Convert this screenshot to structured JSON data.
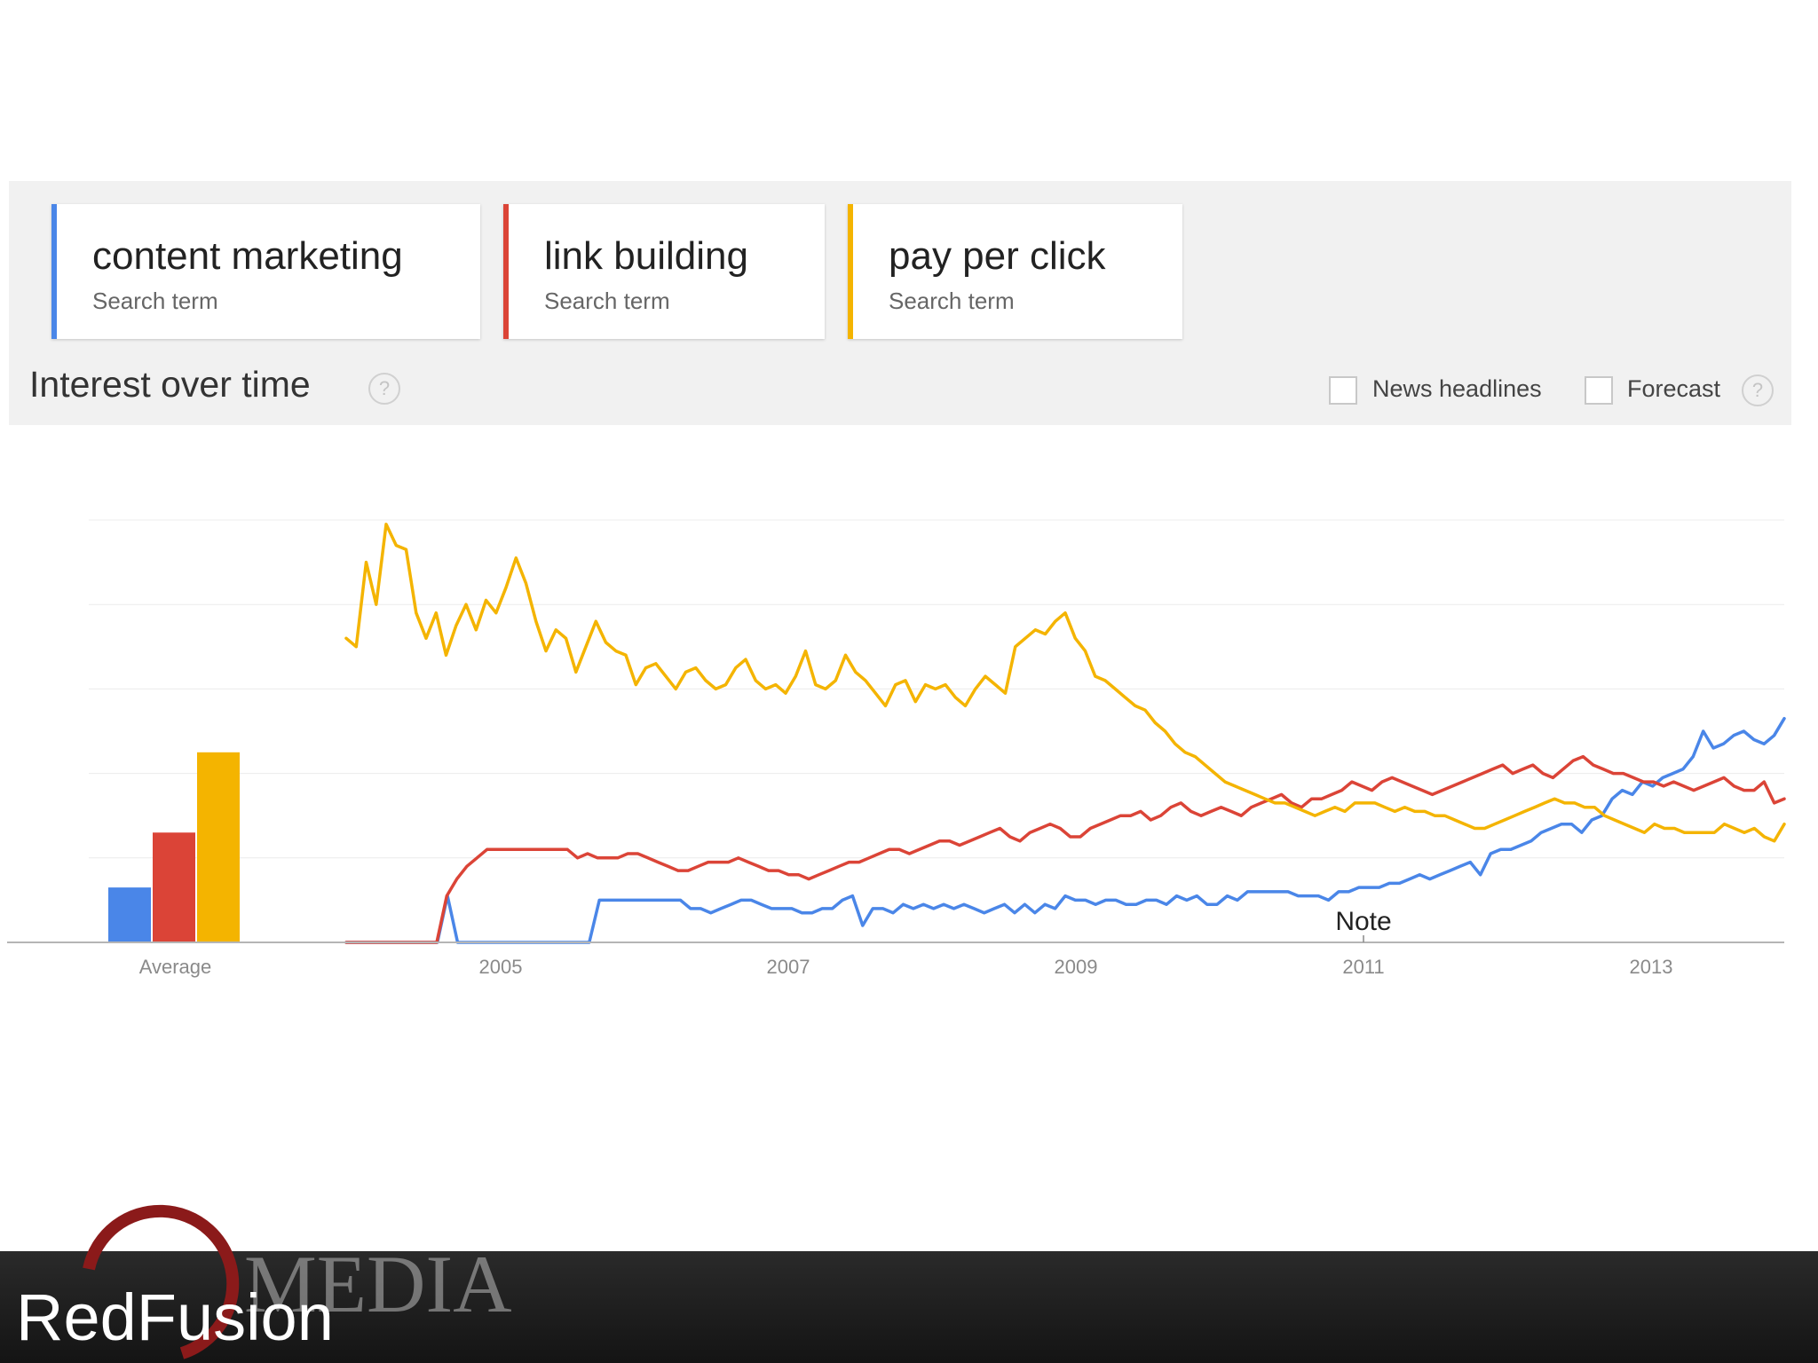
{
  "terms": [
    {
      "name": "content marketing",
      "sub": "Search term",
      "color": "#4A86E8"
    },
    {
      "name": "link building",
      "sub": "Search term",
      "color": "#DB4437"
    },
    {
      "name": "pay per click",
      "sub": "Search term",
      "color": "#F4B400"
    }
  ],
  "section": {
    "title": "Interest over time",
    "help": "?",
    "news_label": "News headlines",
    "forecast_label": "Forecast"
  },
  "chart_data": {
    "type": "line",
    "x_start": 2004.0,
    "x_end": 2014.0,
    "ylim": [
      0,
      100
    ],
    "grid": true,
    "note_label": "Note",
    "note_year": 2011,
    "x_ticks": [
      "2005",
      "2007",
      "2009",
      "2011",
      "2013"
    ],
    "average": {
      "label": "Average",
      "values": [
        {
          "series": "content marketing",
          "value": 13
        },
        {
          "series": "link building",
          "value": 26
        },
        {
          "series": "pay per click",
          "value": 45
        }
      ]
    },
    "series": [
      {
        "name": "content marketing",
        "color": "#4A86E8",
        "values": [
          0,
          0,
          0,
          0,
          0,
          0,
          0,
          0,
          0,
          0,
          11,
          0,
          0,
          0,
          0,
          0,
          0,
          0,
          0,
          0,
          0,
          0,
          0,
          0,
          0,
          10,
          10,
          10,
          10,
          10,
          10,
          10,
          10,
          10,
          8,
          8,
          7,
          8,
          9,
          10,
          10,
          9,
          8,
          8,
          8,
          7,
          7,
          8,
          8,
          10,
          11,
          4,
          8,
          8,
          7,
          9,
          8,
          9,
          8,
          9,
          8,
          9,
          8,
          7,
          8,
          9,
          7,
          9,
          7,
          9,
          8,
          11,
          10,
          10,
          9,
          10,
          10,
          9,
          9,
          10,
          10,
          9,
          11,
          10,
          11,
          9,
          9,
          11,
          10,
          12,
          12,
          12,
          12,
          12,
          11,
          11,
          11,
          10,
          12,
          12,
          13,
          13,
          13,
          14,
          14,
          15,
          16,
          15,
          16,
          17,
          18,
          19,
          16,
          21,
          22,
          22,
          23,
          24,
          26,
          27,
          28,
          28,
          26,
          29,
          30,
          34,
          36,
          35,
          38,
          37,
          39,
          40,
          41,
          44,
          50,
          46,
          47,
          49,
          50,
          48,
          47,
          49,
          53
        ]
      },
      {
        "name": "link building",
        "color": "#DB4437",
        "values": [
          0,
          0,
          0,
          0,
          0,
          0,
          0,
          0,
          0,
          0,
          11,
          15,
          18,
          20,
          22,
          22,
          22,
          22,
          22,
          22,
          22,
          22,
          22,
          20,
          21,
          20,
          20,
          20,
          21,
          21,
          20,
          19,
          18,
          17,
          17,
          18,
          19,
          19,
          19,
          20,
          19,
          18,
          17,
          17,
          16,
          16,
          15,
          16,
          17,
          18,
          19,
          19,
          20,
          21,
          22,
          22,
          21,
          22,
          23,
          24,
          24,
          23,
          24,
          25,
          26,
          27,
          25,
          24,
          26,
          27,
          28,
          27,
          25,
          25,
          27,
          28,
          29,
          30,
          30,
          31,
          29,
          30,
          32,
          33,
          31,
          30,
          31,
          32,
          31,
          30,
          32,
          33,
          34,
          35,
          33,
          32,
          34,
          34,
          35,
          36,
          38,
          37,
          36,
          38,
          39,
          38,
          37,
          36,
          35,
          36,
          37,
          38,
          39,
          40,
          41,
          42,
          40,
          41,
          42,
          40,
          39,
          41,
          43,
          44,
          42,
          41,
          40,
          40,
          39,
          38,
          38,
          37,
          38,
          37,
          36,
          37,
          38,
          39,
          37,
          36,
          36,
          38,
          33,
          34
        ]
      },
      {
        "name": "pay per click",
        "color": "#F4B400",
        "values": [
          72,
          70,
          90,
          80,
          99,
          94,
          93,
          78,
          72,
          78,
          68,
          75,
          80,
          74,
          81,
          78,
          84,
          91,
          85,
          76,
          69,
          74,
          72,
          64,
          70,
          76,
          71,
          69,
          68,
          61,
          65,
          66,
          63,
          60,
          64,
          65,
          62,
          60,
          61,
          65,
          67,
          62,
          60,
          61,
          59,
          63,
          69,
          61,
          60,
          62,
          68,
          64,
          62,
          59,
          56,
          61,
          62,
          57,
          61,
          60,
          61,
          58,
          56,
          60,
          63,
          61,
          59,
          70,
          72,
          74,
          73,
          76,
          78,
          72,
          69,
          63,
          62,
          60,
          58,
          56,
          55,
          52,
          50,
          47,
          45,
          44,
          42,
          40,
          38,
          37,
          36,
          35,
          34,
          33,
          33,
          32,
          31,
          30,
          31,
          32,
          31,
          33,
          33,
          33,
          32,
          31,
          32,
          31,
          31,
          30,
          30,
          29,
          28,
          27,
          27,
          28,
          29,
          30,
          31,
          32,
          33,
          34,
          33,
          33,
          32,
          32,
          30,
          29,
          28,
          27,
          26,
          28,
          27,
          27,
          26,
          26,
          26,
          26,
          28,
          27,
          26,
          27,
          25,
          24,
          28
        ]
      }
    ]
  },
  "branding": {
    "logo_text": "RedFusion",
    "logo_sub": "MEDIA"
  }
}
